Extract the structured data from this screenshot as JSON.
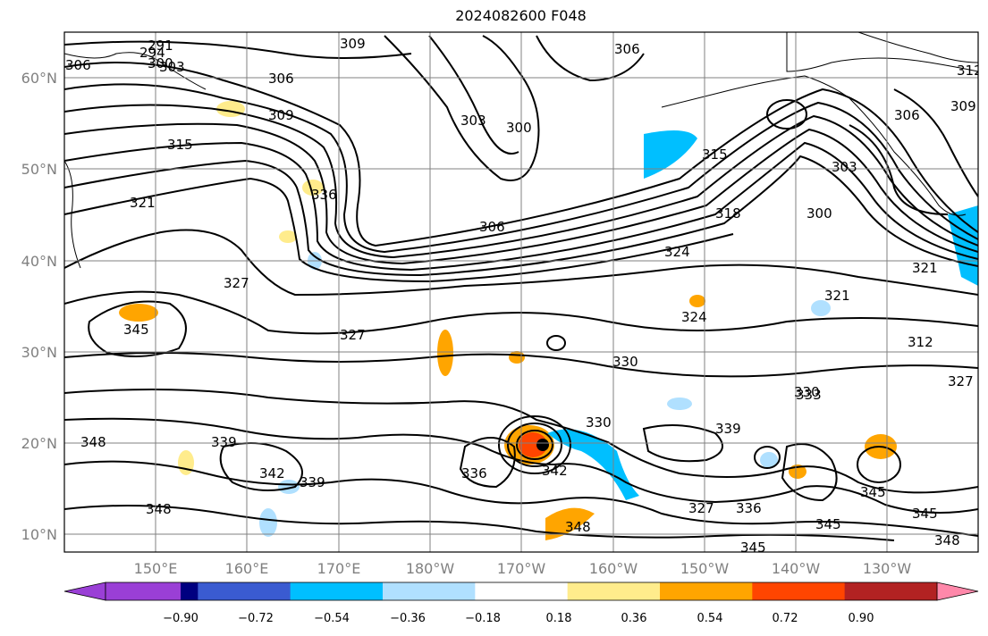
{
  "title": "2024082600 F048",
  "map": {
    "latitude_labels": [
      "60°N",
      "50°N",
      "40°N",
      "30°N",
      "20°N",
      "10°N"
    ],
    "longitude_labels": [
      "150°E",
      "160°E",
      "170°E",
      "180°W",
      "170°W",
      "160°W",
      "150°W",
      "140°W",
      "130°W"
    ],
    "contour_labels": [
      "291",
      "294",
      "300",
      "303",
      "306",
      "309",
      "306",
      "306",
      "309",
      "315",
      "321",
      "336",
      "303",
      "300",
      "315",
      "306",
      "318",
      "324",
      "321",
      "300",
      "306",
      "309",
      "312",
      "303",
      "327",
      "345",
      "327",
      "330",
      "321",
      "324",
      "312",
      "330",
      "333",
      "327",
      "339",
      "330",
      "348",
      "339",
      "342",
      "339",
      "336",
      "342",
      "348",
      "348",
      "327",
      "336",
      "345",
      "345",
      "345",
      "345",
      "348"
    ],
    "colors": {
      "contour": "#000000",
      "grid": "#808080",
      "coast": "#000000"
    }
  },
  "colorbar": {
    "tick_labels": [
      "−0.90",
      "−0.72",
      "−0.54",
      "−0.36",
      "−0.18",
      "0.18",
      "0.36",
      "0.54",
      "0.72",
      "0.90"
    ],
    "colors": [
      "#9a3fd6",
      "#000080",
      "#3a5bd1",
      "#00bfff",
      "#b0e0ff",
      "#ffffff",
      "#ffec8c",
      "#ffa500",
      "#ff4500",
      "#b22222",
      "#ff88aa"
    ]
  }
}
